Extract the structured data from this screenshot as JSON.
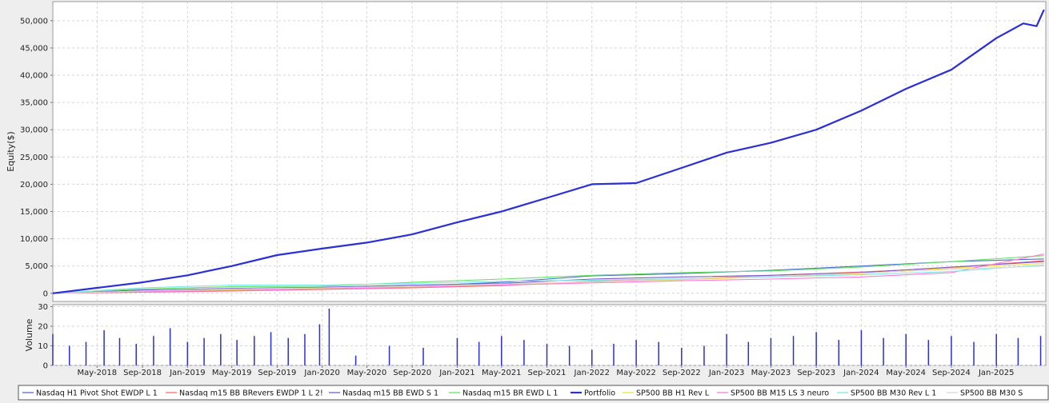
{
  "chart_data": [
    {
      "type": "line",
      "title": "",
      "ylabel": "Equity($)",
      "ylim": [
        -1500,
        53500
      ],
      "xlim": [
        "2018-01-01",
        "2025-05-15"
      ],
      "yticks": [
        0,
        5000,
        10000,
        15000,
        20000,
        25000,
        30000,
        35000,
        40000,
        45000,
        50000
      ],
      "ytick_labels": [
        "0",
        "5,000",
        "10,000",
        "15,000",
        "20,000",
        "25,000",
        "30,000",
        "35,000",
        "40,000",
        "45,000",
        "50,000"
      ],
      "grid": true,
      "series": [
        {
          "name": "Portfolio",
          "color": "#2b2fd6",
          "bold": true,
          "x": [
            "2018-01-01",
            "2018-05-01",
            "2018-09-01",
            "2019-01-01",
            "2019-05-01",
            "2019-09-01",
            "2020-01-01",
            "2020-05-01",
            "2020-09-01",
            "2021-01-01",
            "2021-05-01",
            "2021-09-01",
            "2022-01-01",
            "2022-05-01",
            "2022-09-01",
            "2023-01-01",
            "2023-05-01",
            "2023-09-01",
            "2024-01-01",
            "2024-05-01",
            "2024-09-01",
            "2025-01-01",
            "2025-03-15",
            "2025-04-20",
            "2025-05-10"
          ],
          "y": [
            0,
            1000,
            2000,
            3300,
            5000,
            7000,
            8200,
            9300,
            10800,
            13000,
            15000,
            17500,
            20000,
            20200,
            23000,
            25800,
            27600,
            30000,
            33500,
            37500,
            41000,
            46800,
            49500,
            49000,
            52000
          ]
        },
        {
          "name": "Nasdaq H1 Pivot Shot  EWDP L 1",
          "color": "#4a6fd0",
          "x": [
            "2018-01-01",
            "2018-09-01",
            "2019-05-01",
            "2020-01-01",
            "2020-09-01",
            "2021-05-01",
            "2022-01-01",
            "2022-09-01",
            "2023-05-01",
            "2024-01-01",
            "2024-09-01",
            "2025-05-10"
          ],
          "y": [
            0,
            400,
            700,
            900,
            1300,
            2000,
            3200,
            3600,
            4200,
            5000,
            5800,
            6300
          ]
        },
        {
          "name": "Nasdaq m15  BB BRevers EWDP 1 L 2!",
          "color": "#ff6a6a",
          "x": [
            "2018-01-01",
            "2018-09-01",
            "2019-05-01",
            "2020-01-01",
            "2020-09-01",
            "2021-05-01",
            "2022-01-01",
            "2022-09-01",
            "2023-05-01",
            "2024-01-01",
            "2024-09-01",
            "2025-05-10"
          ],
          "y": [
            0,
            200,
            400,
            700,
            1000,
            1400,
            2200,
            2600,
            3300,
            3900,
            4700,
            6000
          ]
        },
        {
          "name": "Nasdaq m15  BB EWD S 1",
          "color": "#7a5ccf",
          "x": [
            "2018-01-01",
            "2018-09-01",
            "2019-05-01",
            "2020-01-01",
            "2020-09-01",
            "2021-05-01",
            "2022-01-01",
            "2022-09-01",
            "2023-05-01",
            "2024-01-01",
            "2024-09-01",
            "2025-05-10"
          ],
          "y": [
            0,
            600,
            900,
            1100,
            1500,
            1800,
            2600,
            3000,
            3300,
            3800,
            4800,
            5800
          ]
        },
        {
          "name": "Nasdaq m15  BR EWD L 1",
          "color": "#66e066",
          "x": [
            "2018-01-01",
            "2018-09-01",
            "2019-05-01",
            "2020-01-01",
            "2020-09-01",
            "2021-05-01",
            "2022-01-01",
            "2022-09-01",
            "2023-05-01",
            "2024-01-01",
            "2024-09-01",
            "2025-05-10"
          ],
          "y": [
            0,
            800,
            1200,
            1300,
            2000,
            2600,
            3300,
            3800,
            4100,
            4800,
            5800,
            6900
          ]
        },
        {
          "name": "SP500 BB H1 Rev L",
          "color": "#f0e040",
          "x": [
            "2018-01-01",
            "2018-09-01",
            "2019-05-01",
            "2020-01-01",
            "2020-09-01",
            "2021-05-01",
            "2022-01-01",
            "2022-09-01",
            "2023-05-01",
            "2024-01-01",
            "2024-09-01",
            "2025-05-10"
          ],
          "y": [
            0,
            300,
            600,
            900,
            1200,
            1600,
            2100,
            2500,
            3000,
            3600,
            4600,
            5500
          ]
        },
        {
          "name": "SP500 BB M15 LS 3 neuro",
          "color": "#ff7ad9",
          "x": [
            "2018-01-01",
            "2018-09-01",
            "2019-05-01",
            "2020-01-01",
            "2020-09-01",
            "2021-05-01",
            "2022-01-01",
            "2022-09-01",
            "2023-05-01",
            "2024-01-01",
            "2024-09-01",
            "2025-05-10"
          ],
          "y": [
            0,
            300,
            500,
            800,
            1100,
            1500,
            1900,
            2300,
            2600,
            3000,
            3800,
            7200
          ]
        },
        {
          "name": "SP500 BB M30 Rev L 1",
          "color": "#7ee8e8",
          "x": [
            "2018-01-01",
            "2018-09-01",
            "2019-05-01",
            "2020-01-01",
            "2020-09-01",
            "2021-05-01",
            "2022-01-01",
            "2022-09-01",
            "2023-05-01",
            "2024-01-01",
            "2024-09-01",
            "2025-05-10"
          ],
          "y": [
            0,
            1000,
            1500,
            1500,
            1800,
            2200,
            2400,
            2700,
            3000,
            3400,
            4000,
            5200
          ]
        },
        {
          "name": "SP500 BB M30 S",
          "color": "#d8d8d8",
          "x": [
            "2018-01-01",
            "2018-09-01",
            "2019-05-01",
            "2020-01-01",
            "2020-09-01",
            "2021-05-01",
            "2022-01-01",
            "2022-09-01",
            "2023-05-01",
            "2024-01-01",
            "2024-09-01",
            "2025-05-10"
          ],
          "y": [
            0,
            400,
            800,
            1000,
            1300,
            1700,
            2100,
            2600,
            3100,
            3700,
            4400,
            5000
          ]
        }
      ]
    },
    {
      "type": "bar",
      "title": "",
      "ylabel": "Volume",
      "ylim": [
        0,
        31
      ],
      "yticks": [
        0,
        10,
        20,
        30
      ],
      "ytick_labels": [
        "0",
        "10",
        "20",
        "30"
      ],
      "color": "#2b2fd6",
      "x": [
        "2018-01-01",
        "2018-02-15",
        "2018-04-01",
        "2018-05-20",
        "2018-07-01",
        "2018-08-15",
        "2018-10-01",
        "2018-11-15",
        "2019-01-01",
        "2019-02-15",
        "2019-04-01",
        "2019-05-15",
        "2019-07-01",
        "2019-08-15",
        "2019-10-01",
        "2019-11-15",
        "2019-12-25",
        "2020-01-20",
        "2020-04-01",
        "2020-07-01",
        "2020-10-01",
        "2021-01-01",
        "2021-03-01",
        "2021-05-01",
        "2021-07-01",
        "2021-09-01",
        "2021-11-01",
        "2022-01-01",
        "2022-03-01",
        "2022-05-01",
        "2022-07-01",
        "2022-09-01",
        "2022-11-01",
        "2023-01-01",
        "2023-03-01",
        "2023-05-01",
        "2023-07-01",
        "2023-09-01",
        "2023-11-01",
        "2024-01-01",
        "2024-03-01",
        "2024-05-01",
        "2024-07-01",
        "2024-09-01",
        "2024-11-01",
        "2025-01-01",
        "2025-03-01",
        "2025-05-01"
      ],
      "values": [
        16,
        10,
        12,
        18,
        14,
        11,
        15,
        19,
        12,
        14,
        16,
        13,
        15,
        17,
        14,
        16,
        21,
        29,
        5,
        10,
        9,
        14,
        12,
        15,
        13,
        11,
        10,
        8,
        11,
        13,
        12,
        9,
        10,
        16,
        12,
        14,
        15,
        17,
        13,
        18,
        14,
        16,
        13,
        15,
        12,
        16,
        14,
        15
      ]
    }
  ],
  "x_axis": {
    "tick_dates": [
      "2018-05-01",
      "2018-09-01",
      "2019-01-01",
      "2019-05-01",
      "2019-09-01",
      "2020-01-01",
      "2020-05-01",
      "2020-09-01",
      "2021-01-01",
      "2021-05-01",
      "2021-09-01",
      "2022-01-01",
      "2022-05-01",
      "2022-09-01",
      "2023-01-01",
      "2023-05-01",
      "2023-09-01",
      "2024-01-01",
      "2024-05-01",
      "2024-09-01",
      "2025-01-01"
    ],
    "tick_labels": [
      "May-2018",
      "Sep-2018",
      "Jan-2019",
      "May-2019",
      "Sep-2019",
      "Jan-2020",
      "May-2020",
      "Sep-2020",
      "Jan-2021",
      "May-2021",
      "Sep-2021",
      "Jan-2022",
      "May-2022",
      "Sep-2022",
      "Jan-2023",
      "May-2023",
      "Sep-2023",
      "Jan-2024",
      "May-2024",
      "Sep-2024",
      "Jan-2025"
    ]
  },
  "legend": {
    "placement": "bottom",
    "items": [
      "Nasdaq H1 Pivot Shot  EWDP L 1",
      "Nasdaq m15  BB BRevers EWDP 1 L 2!",
      "Nasdaq m15  BB EWD S 1",
      "Nasdaq m15  BR EWD L 1",
      "Portfolio",
      "SP500 BB H1 Rev L",
      "SP500 BB M15 LS 3 neuro",
      "SP500 BB M30 Rev L 1",
      "SP500 BB M30 S"
    ]
  }
}
